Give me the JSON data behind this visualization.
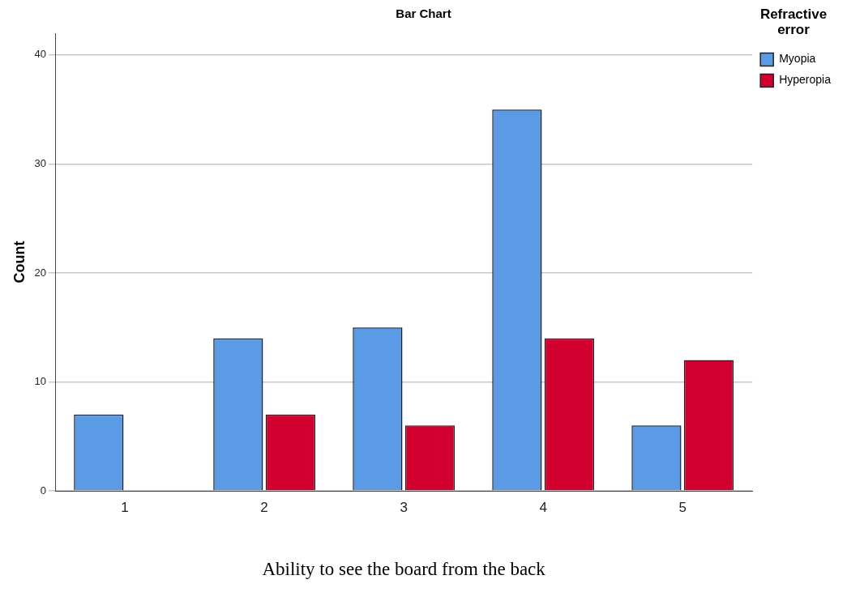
{
  "chart_data": {
    "type": "bar",
    "title": "Bar Chart",
    "xlabel": "Ability to see the board from the back",
    "ylabel": "Count",
    "legend_title": "Refractive error",
    "categories": [
      "1",
      "2",
      "3",
      "4",
      "5"
    ],
    "series": [
      {
        "name": "Myopia",
        "color": "#5b9ae4",
        "values": [
          7,
          14,
          15,
          35,
          6
        ]
      },
      {
        "name": "Hyperopia",
        "color": "#d2002e",
        "values": [
          null,
          7,
          6,
          14,
          12
        ]
      }
    ],
    "ylim": [
      0,
      42
    ],
    "yticks": [
      0,
      10,
      20,
      30,
      40
    ],
    "grid": "y",
    "legend": "top right"
  }
}
